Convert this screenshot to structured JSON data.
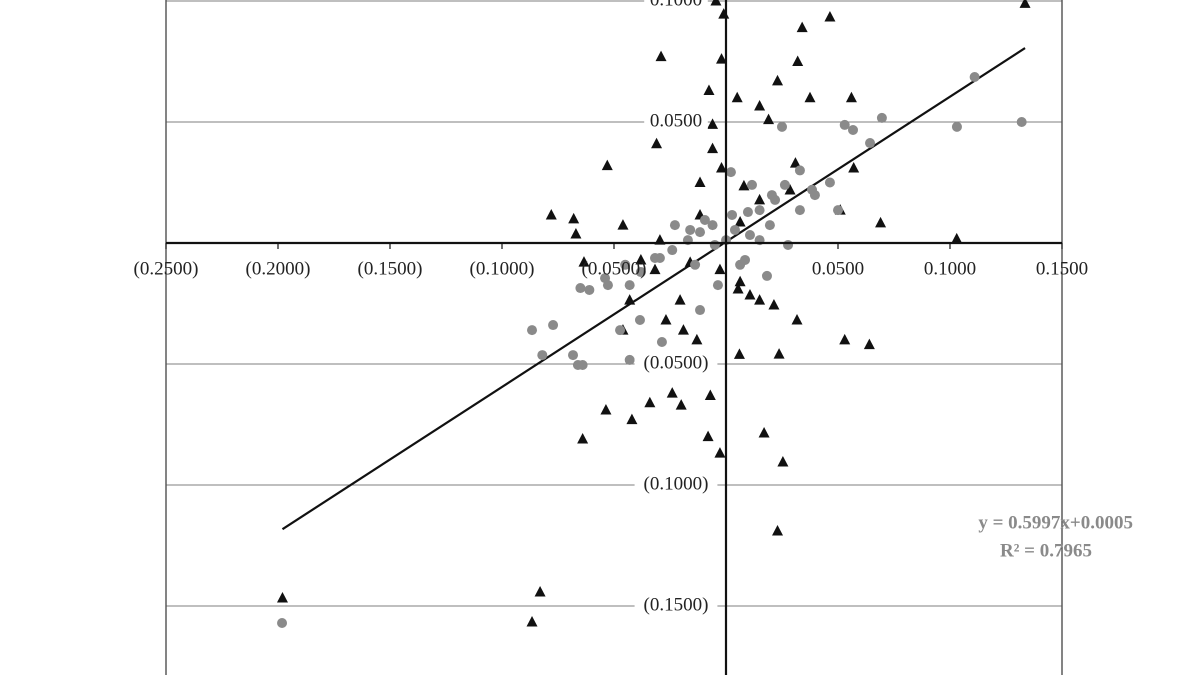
{
  "chart_data": {
    "type": "scatter",
    "xlim": [
      -0.25,
      0.15
    ],
    "ylim": [
      -0.178,
      0.1
    ],
    "xticks": [
      {
        "value": -0.25,
        "label": "(0.2500)"
      },
      {
        "value": -0.2,
        "label": "(0.2000)"
      },
      {
        "value": -0.15,
        "label": "(0.1500)"
      },
      {
        "value": -0.1,
        "label": "(0.1000)"
      },
      {
        "value": -0.05,
        "label": "(0.0500)"
      },
      {
        "value": 0.05,
        "label": "0.0500"
      },
      {
        "value": 0.1,
        "label": "0.1000"
      },
      {
        "value": 0.15,
        "label": "0.1500"
      }
    ],
    "yticks": [
      {
        "value": 0.1,
        "label": "0.1000"
      },
      {
        "value": 0.05,
        "label": "0.0500"
      },
      {
        "value": -0.05,
        "label": "(0.0500)"
      },
      {
        "value": -0.1,
        "label": "(0.1000)"
      },
      {
        "value": -0.15,
        "label": "(0.1500)"
      }
    ],
    "grid": true,
    "series": [
      {
        "marker": "triangle",
        "color": "#111111",
        "x": [
          0.1335,
          -0.0045,
          -0.001,
          0.0464,
          0.034,
          -0.029,
          -0.002,
          0.032,
          0.023,
          -0.0076,
          0.0375,
          0.005,
          0.056,
          0.015,
          -0.0125,
          0.019,
          -0.006,
          -0.031,
          -0.053,
          0.057,
          -0.006,
          0.031,
          -0.002,
          -0.0116,
          -0.078,
          -0.068,
          -0.067,
          -0.046,
          0.069,
          0.103,
          0.051,
          -0.0634,
          -0.038,
          -0.016,
          0.0054,
          0.0107,
          0.015,
          0.0214,
          0.0317,
          -0.0268,
          -0.019,
          -0.013,
          0.053,
          0.064,
          0.006,
          0.0237,
          -0.046,
          -0.0536,
          -0.042,
          -0.034,
          -0.024,
          -0.02,
          -0.007,
          -0.064,
          -0.008,
          -0.0027,
          0.017,
          0.0254,
          0.023,
          -0.198,
          -0.083,
          -0.0866,
          0.008,
          0.015,
          0.0286,
          -0.0116,
          0.0063,
          -0.0295,
          0.0063,
          -0.0027,
          -0.0205,
          -0.043,
          -0.0317
        ],
        "values": [
          0.099,
          0.1,
          0.0946,
          0.0934,
          0.089,
          0.077,
          0.076,
          0.075,
          0.067,
          0.063,
          0.06,
          0.06,
          0.06,
          0.0566,
          0.05,
          0.051,
          0.049,
          0.041,
          0.032,
          0.031,
          0.039,
          0.033,
          0.031,
          0.025,
          0.0116,
          0.01,
          0.0037,
          0.0074,
          0.0083,
          0.0017,
          0.0136,
          -0.0079,
          -0.007,
          -0.008,
          -0.019,
          -0.0215,
          -0.0236,
          -0.0256,
          -0.0318,
          -0.0318,
          -0.036,
          -0.04,
          -0.04,
          -0.042,
          -0.046,
          -0.0459,
          -0.036,
          -0.069,
          -0.073,
          -0.066,
          -0.062,
          -0.067,
          -0.063,
          -0.081,
          -0.08,
          -0.0868,
          -0.0785,
          -0.0905,
          -0.119,
          -0.1467,
          -0.1442,
          -0.1566,
          0.0236,
          0.0178,
          0.0219,
          0.0116,
          0.0087,
          0.0012,
          -0.016,
          -0.011,
          -0.0236,
          -0.0236,
          -0.011
        ]
      },
      {
        "marker": "circle",
        "color": "#8a8a8a",
        "x": [
          0.111,
          0.132,
          0.1031,
          0.0696,
          0.0643,
          0.0567,
          0.053,
          0.05,
          0.0464,
          0.0384,
          0.033,
          0.0263,
          0.0205,
          0.015,
          0.0098,
          0.0027,
          -0.006,
          -0.0116,
          -0.017,
          -0.024,
          -0.0317,
          -0.038,
          -0.043,
          -0.0527,
          -0.065,
          -0.0866,
          -0.0772,
          -0.082,
          -0.0683,
          -0.064,
          -0.0661,
          -0.043,
          -0.0473,
          -0.0384,
          -0.0286,
          -0.0116,
          -0.0036,
          0.0063,
          0.0183,
          0.0277,
          0.0196,
          0.0219,
          0.0116,
          0.0022,
          0.025,
          -0.1982,
          -0.0295,
          -0.0138,
          -0.005,
          0.0,
          0.004,
          0.0107,
          0.015,
          -0.0094,
          -0.016,
          -0.0228,
          0.033,
          0.0397,
          0.0085,
          -0.045,
          -0.054,
          -0.061
        ],
        "values": [
          0.0686,
          0.05,
          0.048,
          0.0517,
          0.0413,
          0.0467,
          0.0488,
          0.0136,
          0.025,
          0.022,
          0.03,
          0.024,
          0.0198,
          0.0136,
          0.0128,
          0.0116,
          0.0074,
          0.0045,
          0.0012,
          -0.0029,
          -0.0062,
          -0.012,
          -0.0174,
          -0.0174,
          -0.0186,
          -0.036,
          -0.0339,
          -0.0463,
          -0.0463,
          -0.0504,
          -0.0504,
          -0.0483,
          -0.036,
          -0.0318,
          -0.0409,
          -0.0277,
          -0.0174,
          -0.009,
          -0.0136,
          -0.0008,
          0.0074,
          0.0178,
          0.024,
          0.0293,
          0.048,
          -0.157,
          -0.0062,
          -0.009,
          -0.0008,
          0.0012,
          0.0054,
          0.0033,
          0.0012,
          0.0095,
          0.0054,
          0.0074,
          0.0136,
          0.0198,
          -0.007,
          -0.009,
          -0.0145,
          -0.0194
        ]
      }
    ],
    "trendline": {
      "slope": 0.5997,
      "intercept": 0.0005,
      "x_range": [
        -0.198,
        0.1335
      ],
      "color": "#111111"
    },
    "annotations": [
      "y = 0.5997x+0.0005",
      "R² = 0.7965"
    ]
  }
}
